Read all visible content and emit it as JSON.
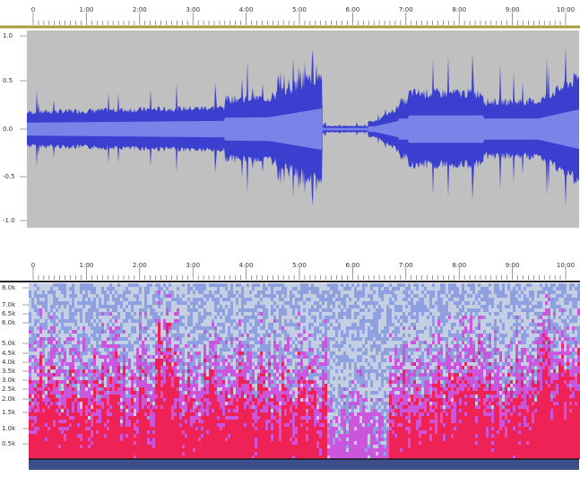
{
  "waveform": {
    "timeline_ticks": [
      "0",
      "1:00",
      "2:00",
      "3:00",
      "4:00",
      "5:00",
      "6:00",
      "7:00",
      "8:00",
      "9:00",
      "10:00"
    ],
    "amplitude_labels": [
      "1.0",
      "0.5",
      "0.0",
      "-0.5",
      "-1.0"
    ],
    "colors": {
      "background": "#c0c0c0",
      "wave_outer": "#3a3fd0",
      "wave_inner": "#7a84e8",
      "ruler_line": "#a89a3a"
    }
  },
  "spectrogram": {
    "timeline_ticks": [
      "0",
      "1:00",
      "2:00",
      "3:00",
      "4:00",
      "5:00",
      "6:00",
      "7:00",
      "8:00",
      "9:00",
      "10:00"
    ],
    "frequency_labels": [
      "8.0k",
      "7.0k",
      "6.5k",
      "6.0k",
      "5.0k",
      "4.5k",
      "4.0k",
      "3.5k",
      "3.0k",
      "2.5k",
      "2.0k",
      "1.5k",
      "1.0k",
      "0.5k"
    ],
    "colors": {
      "hot": "#ee2255",
      "mid": "#cc55dd",
      "cool": "#8fa0e0",
      "quiet": "#c4cfe3"
    }
  }
}
